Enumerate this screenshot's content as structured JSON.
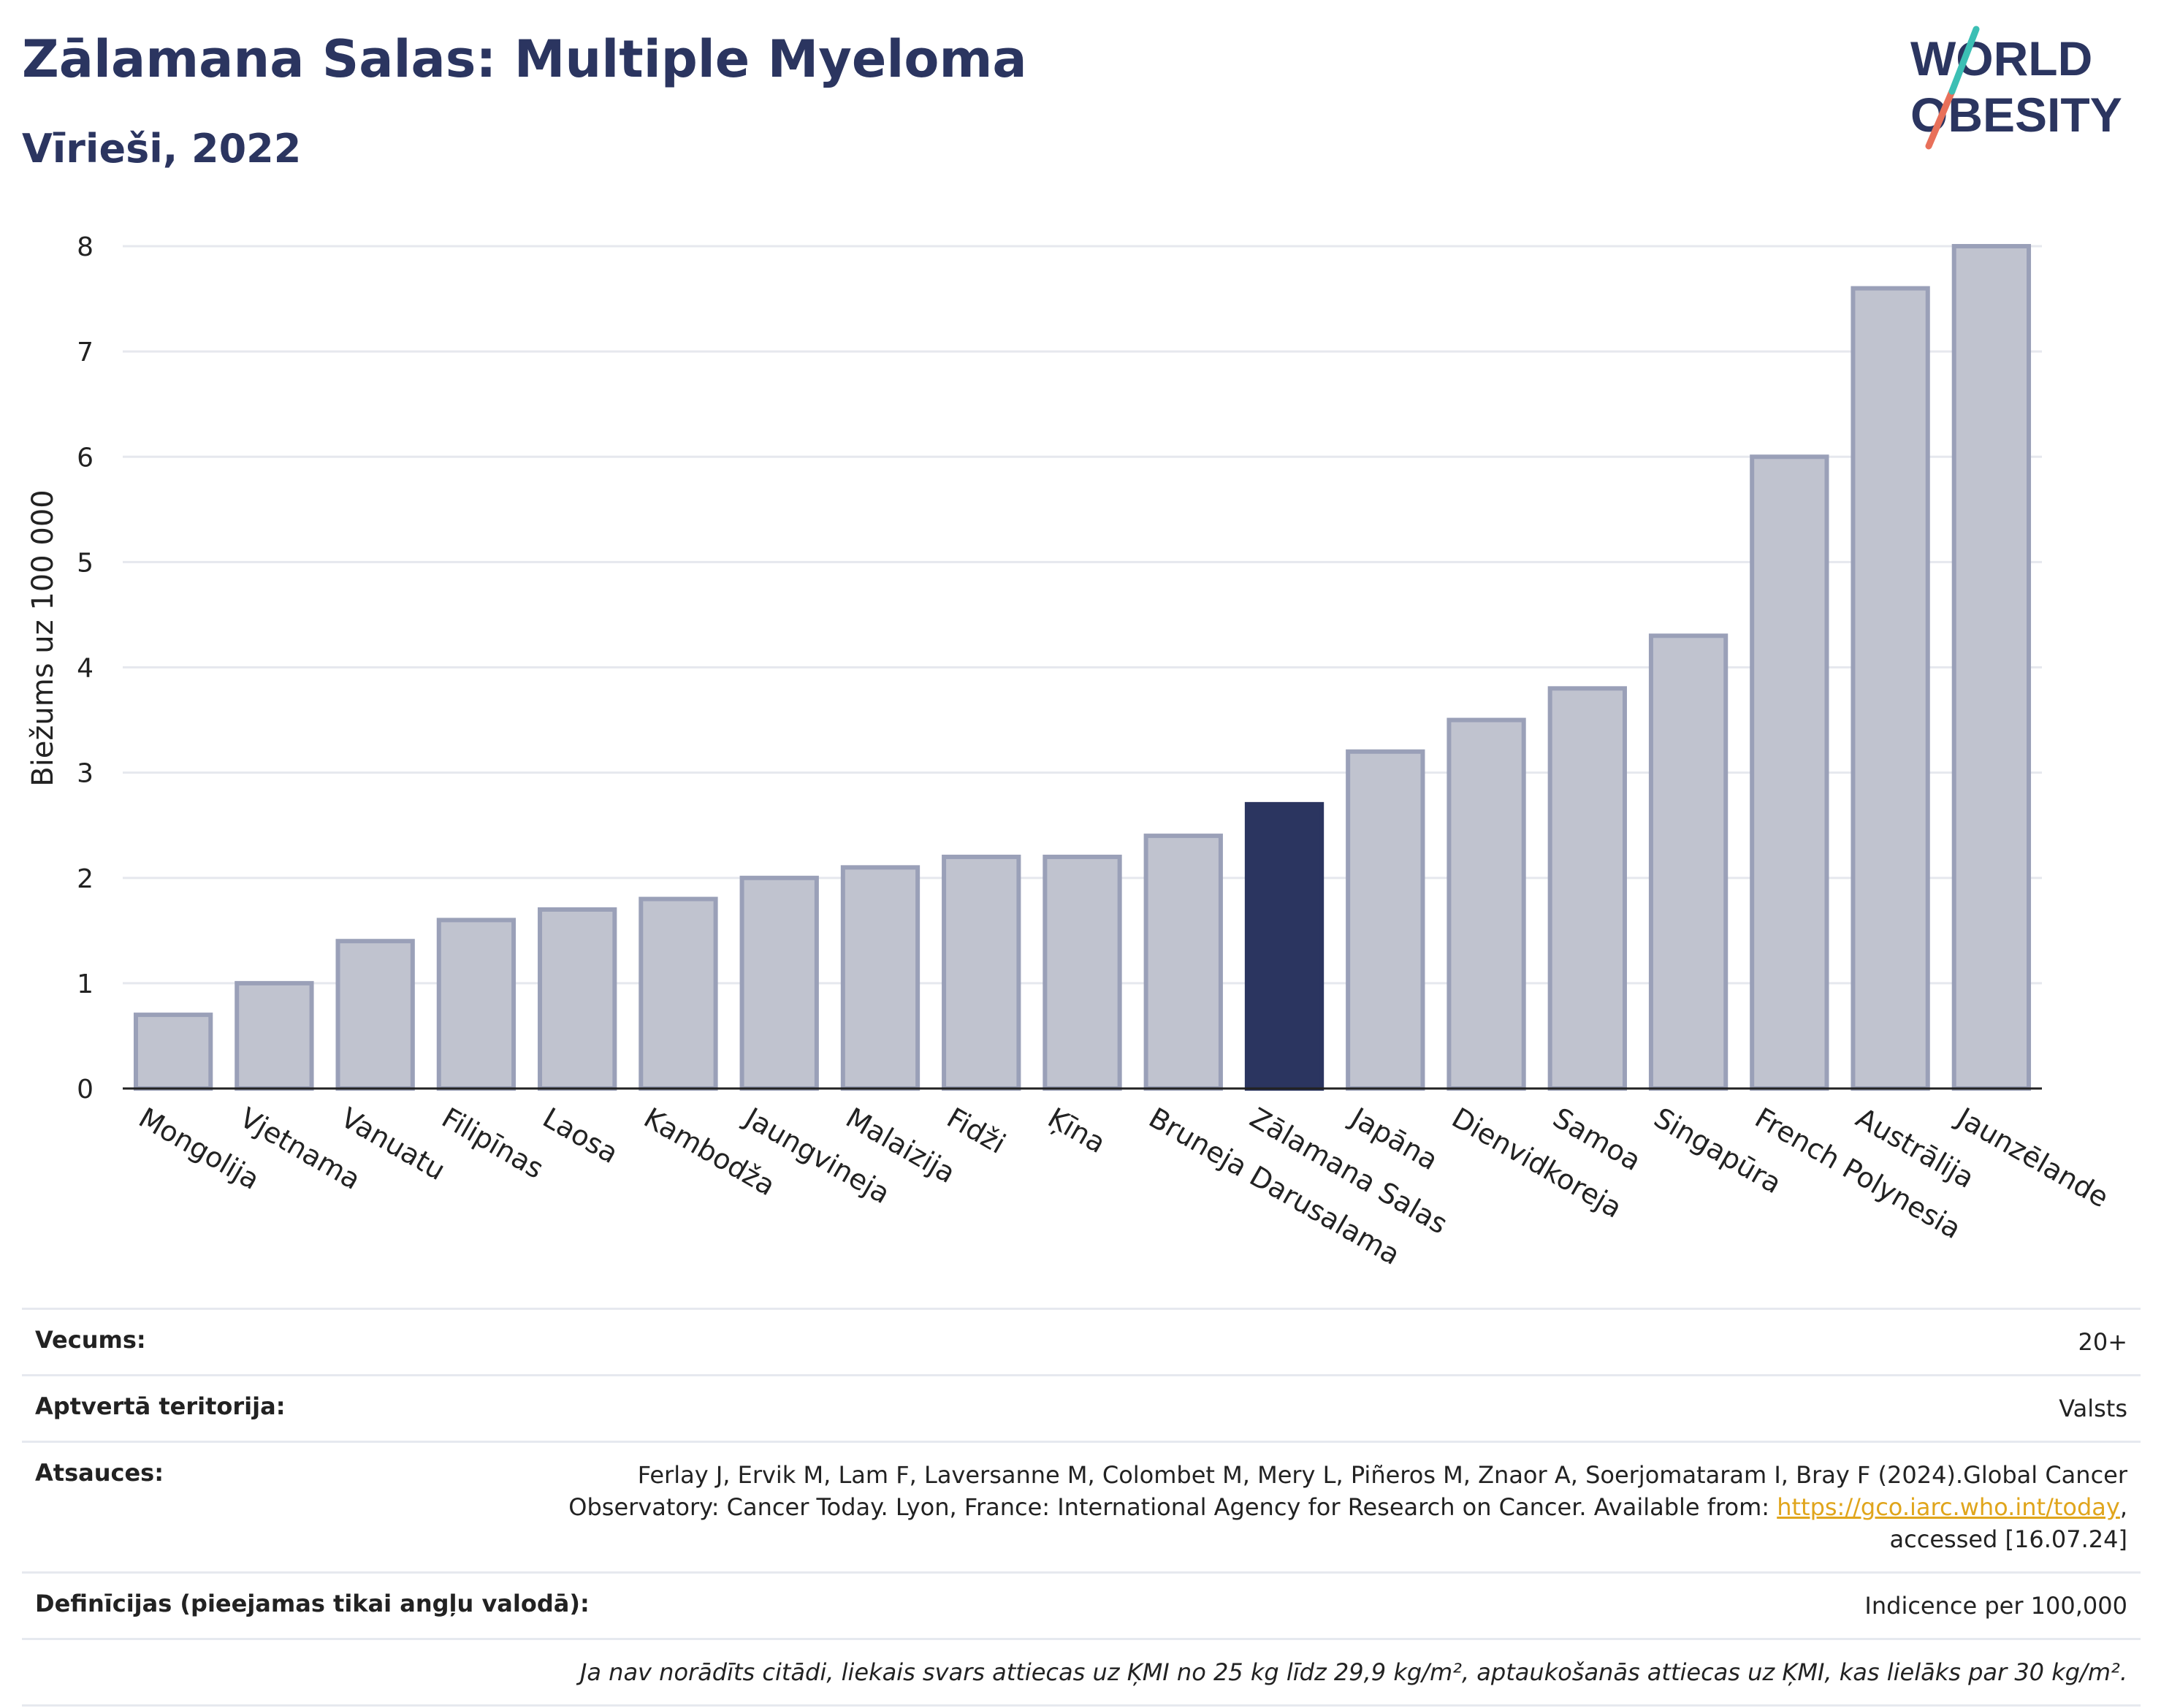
{
  "header": {
    "title": "Zālamana Salas: Multiple Myeloma",
    "subtitle": "Vīrieši, 2022"
  },
  "logo": {
    "line1": "WORLD",
    "line2": "OBESITY"
  },
  "chart_data": {
    "type": "bar",
    "ylabel": "Biežums uz 100 000",
    "xlabel": "",
    "ylim": [
      0,
      8
    ],
    "yticks": [
      0,
      1,
      2,
      3,
      4,
      5,
      6,
      7,
      8
    ],
    "grid": true,
    "categories": [
      "Mongolija",
      "Vjetnama",
      "Vanuatu",
      "Filipīnas",
      "Laosa",
      "Kambodža",
      "Jaungvineja",
      "Malaizija",
      "Fidži",
      "Ķīna",
      "Bruneja Darusalama",
      "Zālamana Salas",
      "Japāna",
      "Dienvidkoreja",
      "Samoa",
      "Singapūra",
      "French Polynesia",
      "Austrālija",
      "Jaunzēlande"
    ],
    "values": [
      0.7,
      1.0,
      1.4,
      1.6,
      1.7,
      1.8,
      2.0,
      2.1,
      2.2,
      2.2,
      2.4,
      2.7,
      3.2,
      3.5,
      3.8,
      4.3,
      6.0,
      7.6,
      8.0
    ],
    "highlight": "Zālamana Salas",
    "colors": {
      "bar": "#c0c3cf",
      "bar_border": "#9aa0b8",
      "highlight": "#2b3560"
    }
  },
  "meta": {
    "age_label": "Vecums:",
    "age_value": "20+",
    "territory_label": "Aptvertā teritorija:",
    "territory_value": "Valsts",
    "refs_label": "Atsauces:",
    "refs_text_1": "Ferlay J, Ervik M, Lam F, Laversanne M, Colombet M, Mery L, Piñeros M, Znaor A, Soerjomataram I, Bray F (2024).Global Cancer",
    "refs_text_2": "Observatory: Cancer Today. Lyon, France: International Agency for Research on Cancer. Available from: ",
    "refs_link": "https://gco.iarc.who.int/today",
    "refs_text_3": ",",
    "refs_text_4": "accessed [16.07.24]",
    "defs_label": "Definīcijas (pieejamas tikai angļu valodā):",
    "defs_value": "Indicence per 100,000",
    "note": "Ja nav norādīts citādi, liekais svars attiecas uz ĶMI no 25 kg līdz 29,9 kg/m², aptaukošanās attiecas uz ĶMI, kas lielāks par 30 kg/m²."
  }
}
